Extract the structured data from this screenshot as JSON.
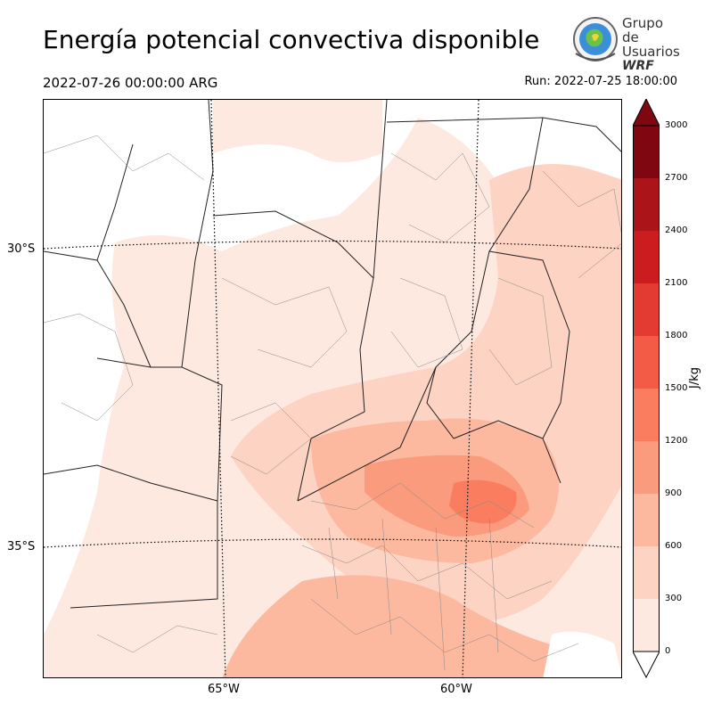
{
  "header": {
    "title": "Energía potencial convectiva disponible",
    "valid_time": "2022-07-26 00:00:00 ARG",
    "run_time": "Run: 2022-07-25 18:00:00"
  },
  "logo": {
    "line1": "Grupo de",
    "line2": "Usuarios",
    "line3": "WRF"
  },
  "map": {
    "lat_labels": [
      "30°S",
      "35°S"
    ],
    "lon_labels": [
      "65°W",
      "60°W"
    ]
  },
  "colorbar": {
    "units": "J/kg",
    "ticks": [
      "0",
      "300",
      "600",
      "900",
      "1200",
      "1500",
      "1800",
      "2100",
      "2400",
      "2700",
      "3000"
    ],
    "colors": [
      "#fee9e0",
      "#fdd3c3",
      "#fcb9a0",
      "#fb9b7d",
      "#f97d5e",
      "#f35b46",
      "#e33a31",
      "#cb1d20",
      "#ab1519",
      "#7e0712"
    ]
  }
}
